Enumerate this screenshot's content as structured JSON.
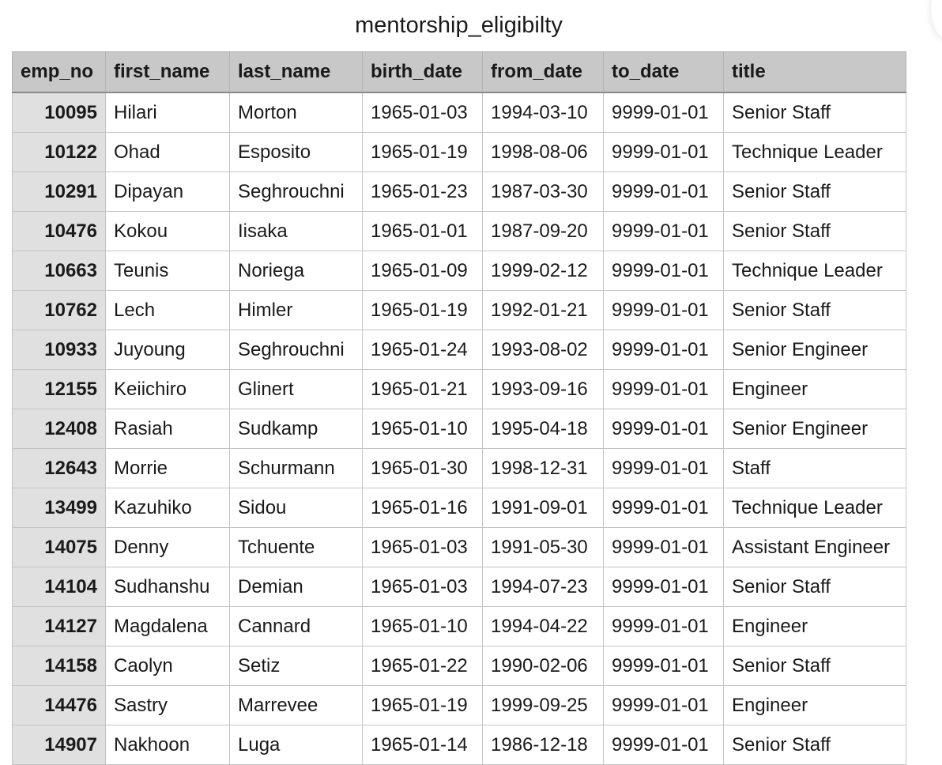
{
  "title": "mentorship_eligibilty",
  "columns": [
    "emp_no",
    "first_name",
    "last_name",
    "birth_date",
    "from_date",
    "to_date",
    "title"
  ],
  "rows": [
    [
      "10095",
      "Hilari",
      "Morton",
      "1965-01-03",
      "1994-03-10",
      "9999-01-01",
      "Senior Staff"
    ],
    [
      "10122",
      "Ohad",
      "Esposito",
      "1965-01-19",
      "1998-08-06",
      "9999-01-01",
      "Technique Leader"
    ],
    [
      "10291",
      "Dipayan",
      "Seghrouchni",
      "1965-01-23",
      "1987-03-30",
      "9999-01-01",
      "Senior Staff"
    ],
    [
      "10476",
      "Kokou",
      "Iisaka",
      "1965-01-01",
      "1987-09-20",
      "9999-01-01",
      "Senior Staff"
    ],
    [
      "10663",
      "Teunis",
      "Noriega",
      "1965-01-09",
      "1999-02-12",
      "9999-01-01",
      "Technique Leader"
    ],
    [
      "10762",
      "Lech",
      "Himler",
      "1965-01-19",
      "1992-01-21",
      "9999-01-01",
      "Senior Staff"
    ],
    [
      "10933",
      "Juyoung",
      "Seghrouchni",
      "1965-01-24",
      "1993-08-02",
      "9999-01-01",
      "Senior Engineer"
    ],
    [
      "12155",
      "Keiichiro",
      "Glinert",
      "1965-01-21",
      "1993-09-16",
      "9999-01-01",
      "Engineer"
    ],
    [
      "12408",
      "Rasiah",
      "Sudkamp",
      "1965-01-10",
      "1995-04-18",
      "9999-01-01",
      "Senior Engineer"
    ],
    [
      "12643",
      "Morrie",
      "Schurmann",
      "1965-01-30",
      "1998-12-31",
      "9999-01-01",
      "Staff"
    ],
    [
      "13499",
      "Kazuhiko",
      "Sidou",
      "1965-01-16",
      "1991-09-01",
      "9999-01-01",
      "Technique Leader"
    ],
    [
      "14075",
      "Denny",
      "Tchuente",
      "1965-01-03",
      "1991-05-30",
      "9999-01-01",
      "Assistant Engineer"
    ],
    [
      "14104",
      "Sudhanshu",
      "Demian",
      "1965-01-03",
      "1994-07-23",
      "9999-01-01",
      "Senior Staff"
    ],
    [
      "14127",
      "Magdalena",
      "Cannard",
      "1965-01-10",
      "1994-04-22",
      "9999-01-01",
      "Engineer"
    ],
    [
      "14158",
      "Caolyn",
      "Setiz",
      "1965-01-22",
      "1990-02-06",
      "9999-01-01",
      "Senior Staff"
    ],
    [
      "14476",
      "Sastry",
      "Marrevee",
      "1965-01-19",
      "1999-09-25",
      "9999-01-01",
      "Engineer"
    ],
    [
      "14907",
      "Nakhoon",
      "Luga",
      "1965-01-14",
      "1986-12-18",
      "9999-01-01",
      "Senior Staff"
    ]
  ],
  "colors": {
    "header_bg": "#c8c8c8",
    "key_column_bg": "#e0e0e0",
    "grid": "#c4c4c4"
  }
}
